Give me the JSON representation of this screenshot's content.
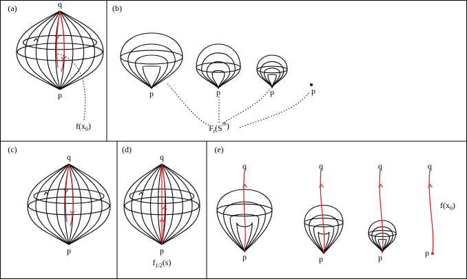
{
  "panels": [
    {
      "label": "(a)",
      "points": [
        "q",
        "p"
      ],
      "annotation": {
        "base": "f(x",
        "sub": "0",
        "end": ")"
      }
    },
    {
      "label": "(b)",
      "points": [
        "p",
        "p",
        "p",
        "p"
      ],
      "annotation": {
        "base": "F",
        "sub": "t",
        "mid": "(S",
        "sup": "m",
        "end": ")"
      }
    },
    {
      "label": "(c)",
      "points": [
        "q",
        "p"
      ]
    },
    {
      "label": "(d)",
      "points": [
        "q",
        "p"
      ],
      "annotation": {
        "base": "f",
        "sub": "1/2",
        "end": "(s)"
      }
    },
    {
      "label": "(e)",
      "points": [
        "q",
        "p",
        "q",
        "p",
        "q",
        "p",
        "q",
        "p"
      ],
      "annotation": {
        "base": "f(x",
        "sub": "0",
        "end": ")"
      }
    }
  ]
}
